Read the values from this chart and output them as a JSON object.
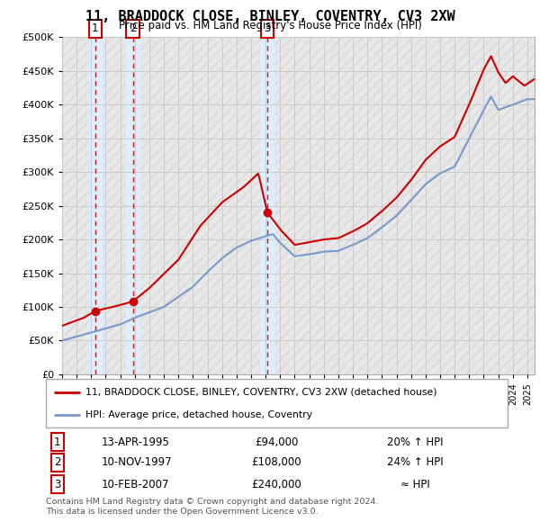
{
  "title": "11, BRADDOCK CLOSE, BINLEY, COVENTRY, CV3 2XW",
  "subtitle": "Price paid vs. HM Land Registry's House Price Index (HPI)",
  "legend_line1": "11, BRADDOCK CLOSE, BINLEY, COVENTRY, CV3 2XW (detached house)",
  "legend_line2": "HPI: Average price, detached house, Coventry",
  "footer1": "Contains HM Land Registry data © Crown copyright and database right 2024.",
  "footer2": "This data is licensed under the Open Government Licence v3.0.",
  "transactions": [
    {
      "num": "1",
      "date": "13-APR-1995",
      "price": "£94,000",
      "rel": "20% ↑ HPI",
      "year": 1995.28,
      "price_val": 94000
    },
    {
      "num": "2",
      "date": "10-NOV-1997",
      "price": "£108,000",
      "rel": "24% ↑ HPI",
      "year": 1997.86,
      "price_val": 108000
    },
    {
      "num": "3",
      "date": "10-FEB-2007",
      "price": "£240,000",
      "rel": "≈ HPI",
      "year": 2007.12,
      "price_val": 240000
    }
  ],
  "ylim": [
    0,
    500000
  ],
  "yticks": [
    0,
    50000,
    100000,
    150000,
    200000,
    250000,
    300000,
    350000,
    400000,
    450000,
    500000
  ],
  "price_line_color": "#cc0000",
  "hpi_line_color": "#7799cc",
  "vline_color": "#cc0000",
  "marker_color": "#cc0000",
  "bg_highlight_color": "#ddeeff",
  "grid_color": "#cccccc",
  "box_color": "#cc0000",
  "hatch_color": "#d8d8d8",
  "hatch_bg": "#e8e8e8"
}
